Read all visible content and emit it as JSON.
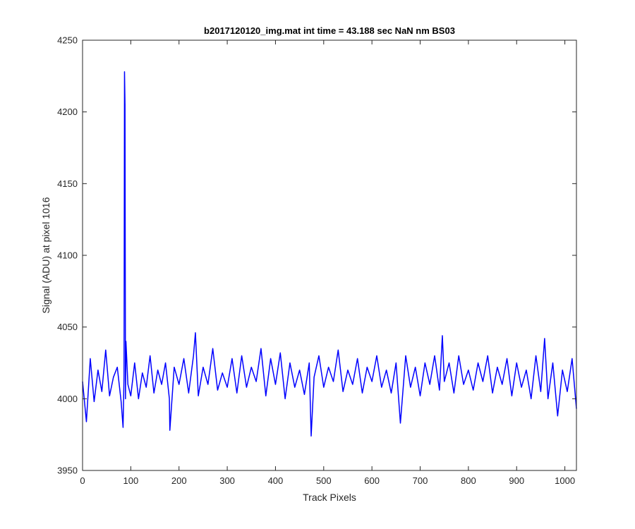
{
  "chart_data": {
    "type": "line",
    "title": "b2017120120_img.mat int time = 43.188 sec  NaN nm BS03",
    "xlabel": "Track Pixels",
    "ylabel": "Signal (ADU) at pixel 1016",
    "xlim": [
      0,
      1024
    ],
    "ylim": [
      3950,
      4250
    ],
    "xticks": [
      0,
      100,
      200,
      300,
      400,
      500,
      600,
      700,
      800,
      900,
      1000
    ],
    "yticks": [
      3950,
      4000,
      4050,
      4100,
      4150,
      4200,
      4250
    ],
    "grid": false,
    "legend": "none",
    "line_color": "#0000ff",
    "series": [
      {
        "x": [
          0,
          8,
          16,
          24,
          32,
          40,
          48,
          56,
          64,
          72,
          80,
          84,
          86,
          87,
          88,
          89,
          90,
          94,
          100,
          108,
          116,
          124,
          132,
          140,
          148,
          156,
          164,
          172,
          180,
          181,
          190,
          200,
          210,
          220,
          230,
          234,
          240,
          250,
          260,
          270,
          280,
          290,
          300,
          310,
          320,
          330,
          340,
          350,
          360,
          370,
          380,
          390,
          400,
          410,
          420,
          430,
          440,
          450,
          460,
          470,
          474,
          480,
          490,
          500,
          510,
          520,
          530,
          540,
          550,
          560,
          570,
          580,
          590,
          600,
          610,
          620,
          630,
          640,
          650,
          659,
          670,
          680,
          690,
          700,
          710,
          720,
          730,
          740,
          746,
          750,
          760,
          770,
          780,
          790,
          800,
          810,
          820,
          830,
          840,
          850,
          860,
          870,
          880,
          890,
          900,
          910,
          920,
          930,
          940,
          950,
          958,
          965,
          975,
          985,
          995,
          1005,
          1015,
          1024
        ],
        "y": [
          4012,
          3984,
          4028,
          3998,
          4020,
          4005,
          4034,
          4002,
          4015,
          4022,
          3998,
          3980,
          4015,
          4228,
          4205,
          4000,
          4040,
          4010,
          4002,
          4025,
          4000,
          4018,
          4008,
          4030,
          4004,
          4020,
          4010,
          4025,
          4000,
          3978,
          4022,
          4010,
          4028,
          4004,
          4030,
          4046,
          4002,
          4022,
          4010,
          4035,
          4006,
          4018,
          4008,
          4028,
          4004,
          4030,
          4008,
          4022,
          4012,
          4035,
          4002,
          4028,
          4010,
          4032,
          4000,
          4025,
          4008,
          4020,
          4003,
          4025,
          3974,
          4015,
          4030,
          4008,
          4022,
          4012,
          4034,
          4005,
          4020,
          4010,
          4028,
          4004,
          4022,
          4012,
          4030,
          4008,
          4020,
          4004,
          4025,
          3983,
          4030,
          4008,
          4022,
          4002,
          4025,
          4010,
          4030,
          4006,
          4044,
          4012,
          4025,
          4004,
          4030,
          4010,
          4020,
          4006,
          4025,
          4012,
          4030,
          4004,
          4022,
          4010,
          4028,
          4002,
          4025,
          4008,
          4020,
          4000,
          4030,
          4005,
          4042,
          4000,
          4025,
          3988,
          4020,
          4005,
          4028,
          3993
        ]
      }
    ]
  }
}
